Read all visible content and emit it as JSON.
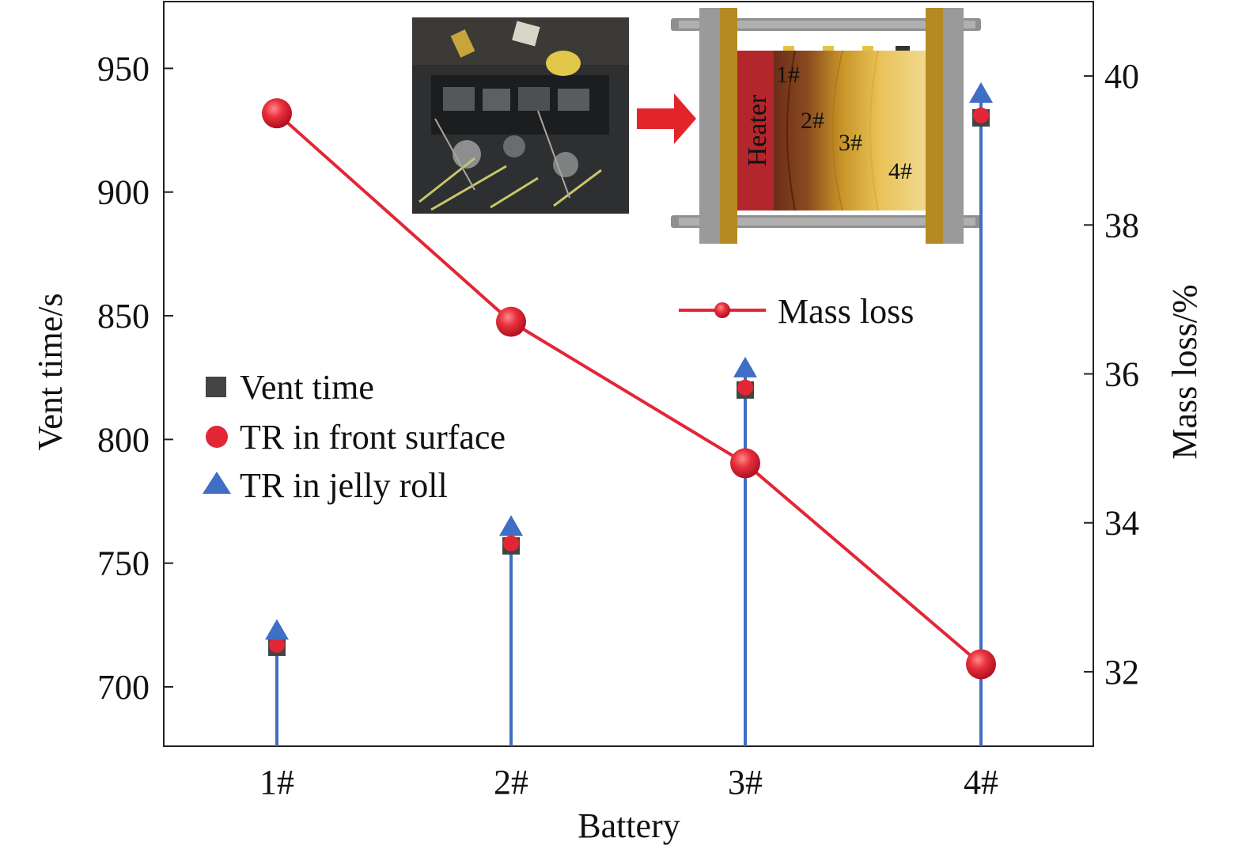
{
  "chart_data": {
    "type": "line",
    "categories": [
      "1#",
      "2#",
      "3#",
      "4#"
    ],
    "xlabel": "Battery",
    "ylabel_left": "Vent time/s",
    "ylabel_right": "Mass loss/%",
    "ylim_left": [
      676,
      977
    ],
    "ylim_right": [
      31.0,
      41.0
    ],
    "yticks_left": [
      "700",
      "750",
      "800",
      "850",
      "900",
      "950"
    ],
    "yticks_right": [
      "32",
      "34",
      "36",
      "38",
      "40"
    ],
    "series": [
      {
        "name": "Vent time",
        "axis": "left",
        "marker": "square",
        "color": "#444444",
        "values": [
          716,
          757,
          820,
          930
        ]
      },
      {
        "name": "TR in front surface",
        "axis": "left",
        "marker": "circle",
        "color": "#e32636",
        "values": [
          717,
          758,
          821,
          931
        ]
      },
      {
        "name": "TR in jelly roll",
        "axis": "left",
        "marker": "triangle",
        "color": "#3f6fc4",
        "values": [
          721,
          763,
          827,
          938
        ]
      },
      {
        "name": "Mass loss",
        "axis": "right",
        "marker": "circle-line",
        "color": "#e32636",
        "values": [
          39.5,
          36.7,
          34.8,
          32.1
        ]
      }
    ],
    "inset": {
      "heater_label": "Heater",
      "cell_labels": [
        "1#",
        "2#",
        "3#",
        "4#"
      ]
    },
    "grid": false,
    "legend_placement": "left-middle; Mass loss entry upper-right"
  }
}
